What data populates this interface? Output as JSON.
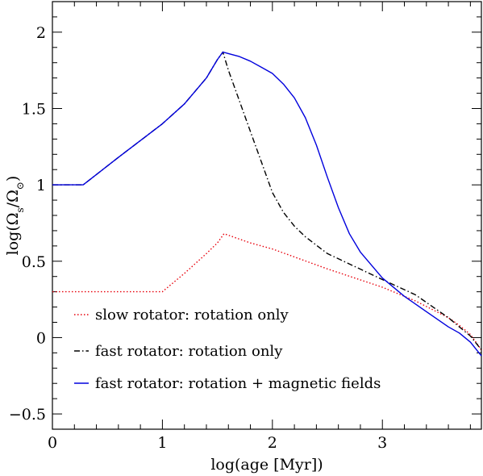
{
  "chart_data": {
    "type": "line",
    "xlabel": "log(age [Myr])",
    "ylabel_parts": [
      "log(Ω",
      "s",
      "/Ω",
      "⊙",
      ")"
    ],
    "xlim": [
      0,
      3.9
    ],
    "ylim": [
      -0.6,
      2.2
    ],
    "x_ticks": [
      0,
      1,
      2,
      3
    ],
    "x_tick_labels": [
      "0",
      "1",
      "2",
      "3"
    ],
    "y_ticks": [
      -0.5,
      0,
      0.5,
      1,
      1.5,
      2
    ],
    "y_tick_labels": [
      "−0.5",
      "0",
      "0.5",
      "1",
      "1.5",
      "2"
    ],
    "grid": false,
    "legend_position": "bottom-left",
    "series": [
      {
        "name": "slow rotator: rotation only",
        "color": "#e8000b",
        "style": "dotted",
        "x": [
          0,
          1.0,
          1.2,
          1.4,
          1.5,
          1.56,
          1.6,
          1.8,
          2.0,
          2.5,
          3.0,
          3.3,
          3.6,
          3.7,
          3.8,
          3.9
        ],
        "y": [
          0.3,
          0.3,
          0.42,
          0.55,
          0.62,
          0.68,
          0.67,
          0.62,
          0.58,
          0.45,
          0.33,
          0.24,
          0.13,
          0.08,
          0.02,
          -0.08
        ]
      },
      {
        "name": "fast rotator: rotation only",
        "color": "#000000",
        "style": "dashdot",
        "x": [
          0,
          0.28,
          0.6,
          1.0,
          1.2,
          1.4,
          1.5,
          1.55,
          1.6,
          1.7,
          1.8,
          1.9,
          2.0,
          2.1,
          2.2,
          2.3,
          2.5,
          3.0,
          3.3,
          3.6,
          3.7,
          3.8,
          3.9
        ],
        "y": [
          1.0,
          1.0,
          1.18,
          1.4,
          1.53,
          1.7,
          1.82,
          1.87,
          1.75,
          1.55,
          1.35,
          1.15,
          0.95,
          0.82,
          0.73,
          0.66,
          0.55,
          0.38,
          0.28,
          0.13,
          0.07,
          0.01,
          -0.08
        ]
      },
      {
        "name": "fast rotator: rotation + magnetic fields",
        "color": "#0000dd",
        "style": "solid",
        "x": [
          0,
          0.28,
          0.6,
          1.0,
          1.2,
          1.4,
          1.5,
          1.55,
          1.6,
          1.7,
          1.8,
          1.9,
          2.0,
          2.1,
          2.2,
          2.3,
          2.4,
          2.5,
          2.6,
          2.7,
          2.8,
          3.0,
          3.2,
          3.4,
          3.6,
          3.7,
          3.8,
          3.9
        ],
        "y": [
          1.0,
          1.0,
          1.18,
          1.4,
          1.53,
          1.7,
          1.82,
          1.87,
          1.86,
          1.84,
          1.81,
          1.77,
          1.73,
          1.66,
          1.57,
          1.44,
          1.26,
          1.05,
          0.85,
          0.68,
          0.56,
          0.39,
          0.27,
          0.17,
          0.07,
          0.03,
          -0.03,
          -0.12
        ]
      }
    ]
  }
}
